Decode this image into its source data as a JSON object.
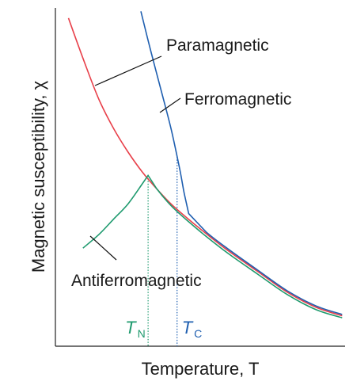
{
  "chart_data": {
    "type": "line",
    "title": "",
    "xlabel": "Temperature, T",
    "ylabel": "Magnetic susceptibility, χ",
    "grid": false,
    "x_ticks": [],
    "y_ticks": [],
    "xlim": [
      0,
      10
    ],
    "ylim": [
      0,
      10
    ],
    "series": [
      {
        "name": "Paramagnetic",
        "color": "#e8404a",
        "x": [
          0.45,
          1.0,
          1.5,
          2.0,
          2.5,
          3.0,
          3.5,
          4.0,
          4.6,
          5.2,
          6.0,
          7.0,
          8.0,
          9.0,
          9.9
        ],
        "y": [
          9.7,
          8.4,
          7.3,
          6.45,
          5.75,
          5.15,
          4.65,
          4.2,
          3.75,
          3.33,
          2.8,
          2.2,
          1.6,
          1.15,
          0.9
        ]
      },
      {
        "name": "Ferromagnetic",
        "color": "#1f5fb0",
        "x": [
          2.95,
          3.3,
          3.7,
          4.0,
          4.3,
          4.45,
          4.6,
          5.2,
          6.0,
          7.0,
          8.0,
          9.0,
          9.9
        ],
        "y": [
          9.9,
          8.7,
          7.4,
          6.4,
          5.2,
          4.5,
          3.92,
          3.38,
          2.85,
          2.24,
          1.64,
          1.19,
          0.94
        ]
      },
      {
        "name": "Antiferromagnetic",
        "color": "#1e9a6e",
        "x": [
          0.95,
          1.5,
          2.0,
          2.5,
          3.0,
          3.2,
          3.5,
          4.0,
          4.6,
          5.2,
          6.0,
          7.0,
          8.0,
          9.0,
          9.9
        ],
        "y": [
          2.9,
          3.3,
          3.75,
          4.2,
          4.8,
          5.05,
          4.65,
          4.15,
          3.68,
          3.25,
          2.72,
          2.12,
          1.53,
          1.08,
          0.84
        ]
      }
    ],
    "annotations": [
      {
        "text": "Paramagnetic",
        "target_series": "Paramagnetic"
      },
      {
        "text": "Ferromagnetic",
        "target_series": "Ferromagnetic"
      },
      {
        "text": "Antiferromagnetic",
        "target_series": "Antiferromagnetic"
      }
    ],
    "markers": [
      {
        "symbol": "T",
        "subscript": "N",
        "x": 3.2,
        "color": "#1e9a6e"
      },
      {
        "symbol": "T",
        "subscript": "C",
        "x": 4.2,
        "color": "#1f5fb0"
      }
    ]
  }
}
